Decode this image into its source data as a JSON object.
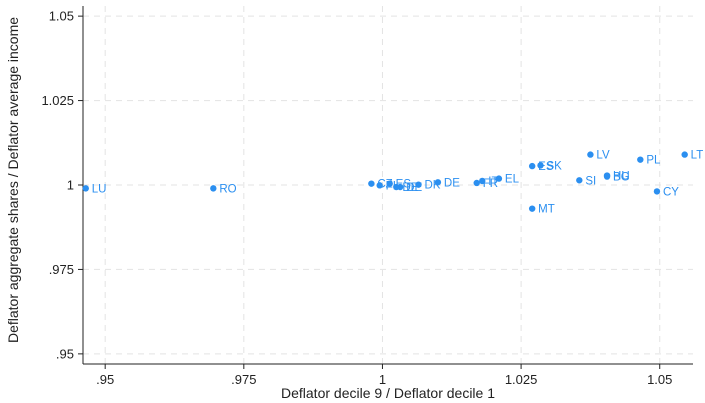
{
  "chart_data": {
    "type": "scatter",
    "xlabel": "Deflator decile 9 / Deflator decile 1",
    "ylabel": "Deflator aggregate shares / Deflator average income",
    "xlim": [
      0.946,
      1.056
    ],
    "ylim": [
      0.947,
      1.053
    ],
    "xticks": [
      {
        "value": 0.95,
        "label": ".95"
      },
      {
        "value": 0.975,
        "label": ".975"
      },
      {
        "value": 1.0,
        "label": "1"
      },
      {
        "value": 1.025,
        "label": "1.025"
      },
      {
        "value": 1.05,
        "label": "1.05"
      }
    ],
    "yticks": [
      {
        "value": 0.95,
        "label": ".95"
      },
      {
        "value": 0.975,
        "label": ".975"
      },
      {
        "value": 1.0,
        "label": "1"
      },
      {
        "value": 1.025,
        "label": "1.025"
      },
      {
        "value": 1.05,
        "label": "1.05"
      }
    ],
    "grid": true,
    "color": "#2b8ff0",
    "points": [
      {
        "label": "LU",
        "x": 0.9465,
        "y": 0.999
      },
      {
        "label": "RO",
        "x": 0.9695,
        "y": 0.999
      },
      {
        "label": "CZ",
        "x": 0.998,
        "y": 1.0004
      },
      {
        "label": "ES",
        "x": 1.0013,
        "y": 1.0004
      },
      {
        "label": "FI",
        "x": 0.9995,
        "y": 0.9999
      },
      {
        "label": "DE",
        "x": 1.0025,
        "y": 0.9994
      },
      {
        "label": "DE",
        "x": 1.0032,
        "y": 0.9994
      },
      {
        "label": "DK",
        "x": 1.0065,
        "y": 1.0001
      },
      {
        "label": "DE",
        "x": 1.01,
        "y": 1.0008
      },
      {
        "label": "FR",
        "x": 1.017,
        "y": 1.0006
      },
      {
        "label": "IT",
        "x": 1.018,
        "y": 1.0012
      },
      {
        "label": "EL",
        "x": 1.021,
        "y": 1.0019
      },
      {
        "label": "ES",
        "x": 1.027,
        "y": 1.0056
      },
      {
        "label": "SK",
        "x": 1.0285,
        "y": 1.0058
      },
      {
        "label": "MT",
        "x": 1.027,
        "y": 0.993
      },
      {
        "label": "SI",
        "x": 1.0355,
        "y": 1.0014
      },
      {
        "label": "LV",
        "x": 1.0375,
        "y": 1.009
      },
      {
        "label": "BG",
        "x": 1.0405,
        "y": 1.0025
      },
      {
        "label": "HU",
        "x": 1.0405,
        "y": 1.0028
      },
      {
        "label": "PL",
        "x": 1.0465,
        "y": 1.0075
      },
      {
        "label": "CY",
        "x": 1.0495,
        "y": 0.9981
      },
      {
        "label": "LT",
        "x": 1.0545,
        "y": 1.009
      }
    ]
  }
}
